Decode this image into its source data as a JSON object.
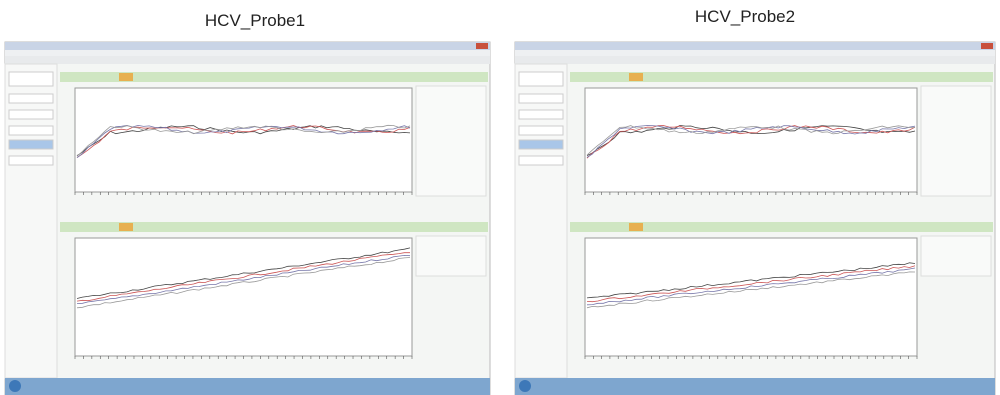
{
  "panels": [
    {
      "title": "HCV_Probe1"
    },
    {
      "title": "HCV_Probe2"
    }
  ]
}
